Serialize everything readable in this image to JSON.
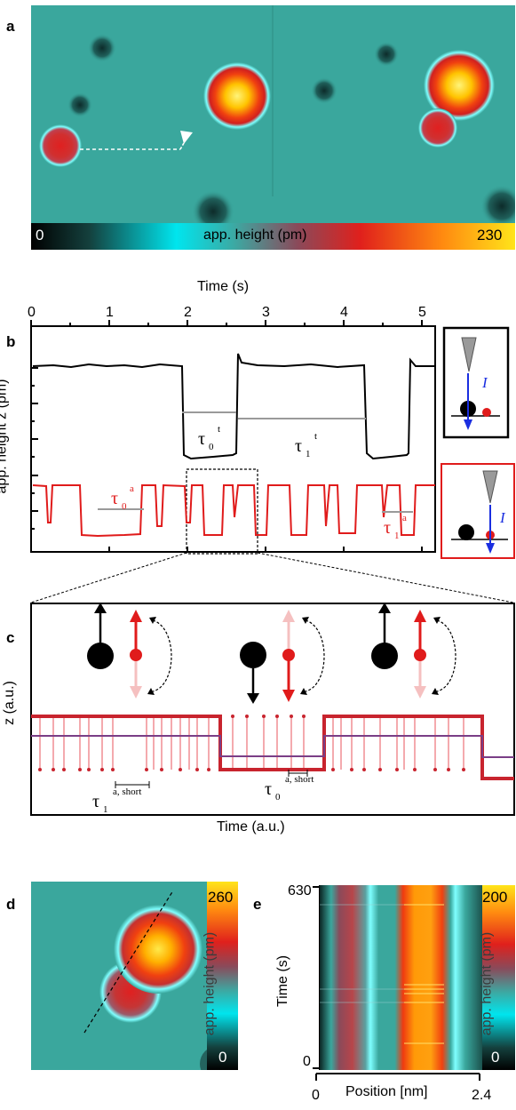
{
  "panels": {
    "a": {
      "label": "a",
      "colorbar": {
        "min": "0",
        "max": "230",
        "label": "app. height (pm)"
      }
    },
    "b": {
      "label": "b",
      "xaxis_label": "Time (s)",
      "yaxis_label": "app. height z (pm)",
      "xticks": [
        "0",
        "1",
        "2",
        "3",
        "4",
        "5"
      ],
      "tau_labels": {
        "t0": "τ",
        "t0_sub": "0",
        "t0_sup": "t",
        "t1": "τ",
        "t1_sub": "1",
        "t1_sup": "t",
        "a0": "τ",
        "a0_sub": "0",
        "a0_sup": "a",
        "a1": "τ",
        "a1_sub": "1",
        "a1_sup": "a"
      },
      "current_label": "I",
      "colors": {
        "top_trace": "#000000",
        "bottom_trace": "#e01b1b",
        "tip": "#9a9a9a",
        "arrow": "#1a2ee0"
      }
    },
    "c": {
      "label": "c",
      "xaxis_label": "Time (a.u.)",
      "yaxis_label": "z (a.u.)",
      "tau1": {
        "sym": "τ",
        "sub": "1",
        "sup": "a, short"
      },
      "tau0": {
        "sym": "τ",
        "sub": "0",
        "sup": "a, short"
      },
      "colors": {
        "dark_red": "#c8242e",
        "purple": "#7a3e86",
        "pale": "#f5c0c0"
      }
    },
    "d": {
      "label": "d",
      "colorbar": {
        "max": "260",
        "min": "0",
        "label": "app. height (pm)"
      }
    },
    "e": {
      "label": "e",
      "colorbar": {
        "max": "200",
        "min": "0",
        "label": "app. height (pm)"
      },
      "xaxis_label": "Position [nm]",
      "yaxis_label": "Time (s)",
      "x_min": "0",
      "x_max": "2.4",
      "y_min": "0",
      "y_max": "630"
    }
  }
}
